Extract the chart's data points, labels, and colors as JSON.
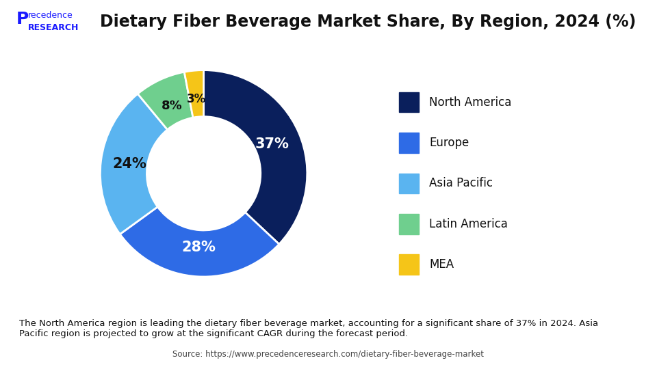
{
  "title": "Dietary Fiber Beverage Market Share, By Region, 2024 (%)",
  "labels": [
    "North America",
    "Europe",
    "Asia Pacific",
    "Latin America",
    "MEA"
  ],
  "values": [
    37,
    28,
    24,
    8,
    3
  ],
  "colors": [
    "#0a1f5c",
    "#2e6be6",
    "#5ab4f0",
    "#6fcf8e",
    "#f5c518"
  ],
  "pct_labels": [
    "37%",
    "28%",
    "24%",
    "8%",
    "3%"
  ],
  "legend_labels": [
    "North America",
    "Europe",
    "Asia Pacific",
    "Latin America",
    "MEA"
  ],
  "annotation_text": "The North America region is leading the dietary fiber beverage market, accounting for a significant share of 37% in 2024. Asia\nPacific region is projected to grow at the significant CAGR during the forecast period.",
  "source_text": "Source: https://www.precedenceresearch.com/dietary-fiber-beverage-market",
  "bg_color": "#ffffff",
  "header_line_color": "#2e6be6",
  "annotation_bg": "#dce9f5",
  "title_fontsize": 17,
  "legend_fontsize": 12
}
